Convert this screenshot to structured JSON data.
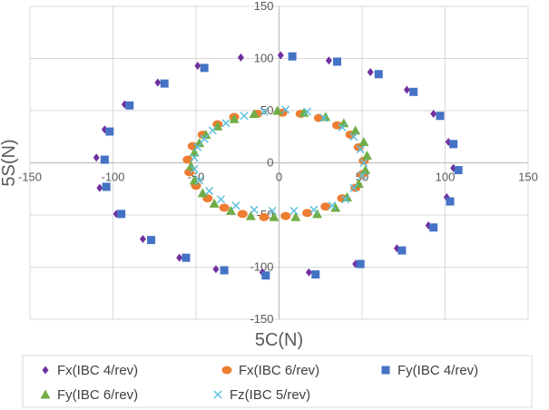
{
  "chart_data": {
    "type": "scatter",
    "xlabel": "5C(N)",
    "ylabel": "5S(N)",
    "xlim": [
      -150,
      150
    ],
    "ylim": [
      -150,
      150
    ],
    "x_ticks": [
      "-150",
      "-100",
      "-50",
      "0",
      "50",
      "100",
      "150"
    ],
    "y_ticks": [
      "150",
      "100",
      "50",
      "0",
      "-50",
      "-100",
      "-150"
    ],
    "grid": true,
    "legend_position": "bottom",
    "series": [
      {
        "name": "Fx(IBC 4/rev)",
        "marker": "diamond",
        "color": "#7030A0",
        "points": [
          [
            1,
            103
          ],
          [
            30,
            98
          ],
          [
            55,
            87
          ],
          [
            77,
            70
          ],
          [
            93,
            47
          ],
          [
            102,
            20
          ],
          [
            105,
            -5
          ],
          [
            101,
            -33
          ],
          [
            90,
            -60
          ],
          [
            71,
            -82
          ],
          [
            46,
            -97
          ],
          [
            18,
            -105
          ],
          [
            -10,
            -105
          ],
          [
            -38,
            -102
          ],
          [
            -60,
            -91
          ],
          [
            -82,
            -73
          ],
          [
            -98,
            -49
          ],
          [
            -108,
            -24
          ],
          [
            -110,
            5
          ],
          [
            -105,
            32
          ],
          [
            -93,
            56
          ],
          [
            -73,
            77
          ],
          [
            -49,
            93
          ],
          [
            -23,
            101
          ]
        ]
      },
      {
        "name": "Fx(IBC 6/rev)",
        "marker": "circle",
        "color": "#ED7D31",
        "points": [
          [
            2,
            48
          ],
          [
            13,
            47
          ],
          [
            24,
            43
          ],
          [
            35,
            36
          ],
          [
            43,
            27
          ],
          [
            48,
            15
          ],
          [
            51,
            2
          ],
          [
            50,
            -11
          ],
          [
            46,
            -24
          ],
          [
            38,
            -34
          ],
          [
            28,
            -42
          ],
          [
            17,
            -48
          ],
          [
            4,
            -51
          ],
          [
            -9,
            -52
          ],
          [
            -22,
            -49
          ],
          [
            -33,
            -43
          ],
          [
            -43,
            -34
          ],
          [
            -50,
            -22
          ],
          [
            -54,
            -9
          ],
          [
            -55,
            3
          ],
          [
            -52,
            16
          ],
          [
            -46,
            27
          ],
          [
            -37,
            37
          ],
          [
            -27,
            44
          ],
          [
            -13,
            47
          ]
        ]
      },
      {
        "name": "Fy(IBC 4/rev)",
        "marker": "square",
        "color": "#4472C4",
        "points": [
          [
            8,
            102
          ],
          [
            35,
            97
          ],
          [
            60,
            85
          ],
          [
            81,
            68
          ],
          [
            97,
            45
          ],
          [
            105,
            18
          ],
          [
            108,
            -7
          ],
          [
            103,
            -37
          ],
          [
            93,
            -62
          ],
          [
            74,
            -84
          ],
          [
            49,
            -97
          ],
          [
            22,
            -107
          ],
          [
            -8,
            -108
          ],
          [
            -33,
            -103
          ],
          [
            -56,
            -91
          ],
          [
            -77,
            -74
          ],
          [
            -95,
            -49
          ],
          [
            -104,
            -23
          ],
          [
            -105,
            3
          ],
          [
            -102,
            30
          ],
          [
            -90,
            55
          ],
          [
            -69,
            76
          ],
          [
            -45,
            91
          ]
        ]
      },
      {
        "name": "Fy(IBC 6/rev)",
        "marker": "triangle",
        "color": "#70AD47",
        "points": [
          [
            -15,
            47
          ],
          [
            -1,
            50
          ],
          [
            15,
            48
          ],
          [
            28,
            44
          ],
          [
            39,
            38
          ],
          [
            46,
            31
          ],
          [
            51,
            20
          ],
          [
            53,
            7
          ],
          [
            52,
            -7
          ],
          [
            48,
            -20
          ],
          [
            41,
            -33
          ],
          [
            34,
            -43
          ],
          [
            23,
            -49
          ],
          [
            10,
            -52
          ],
          [
            -3,
            -52
          ],
          [
            -17,
            -51
          ],
          [
            -29,
            -46
          ],
          [
            -39,
            -39
          ],
          [
            -46,
            -29
          ],
          [
            -51,
            -17
          ],
          [
            -53,
            -3
          ],
          [
            -51,
            10
          ],
          [
            -48,
            19
          ],
          [
            -44,
            27
          ],
          [
            -37,
            35
          ],
          [
            -27,
            42
          ]
        ]
      },
      {
        "name": "Fz(IBC 5/rev)",
        "marker": "x",
        "color": "#5BC0DE",
        "points": [
          [
            -9,
            49
          ],
          [
            4,
            51
          ],
          [
            17,
            49
          ],
          [
            27,
            43
          ],
          [
            38,
            34
          ],
          [
            45,
            25
          ],
          [
            49,
            13
          ],
          [
            51,
            0
          ],
          [
            50,
            -12
          ],
          [
            45,
            -24
          ],
          [
            40,
            -35
          ],
          [
            32,
            -41
          ],
          [
            21,
            -45
          ],
          [
            9,
            -46
          ],
          [
            -4,
            -46
          ],
          [
            -15,
            -45
          ],
          [
            -26,
            -41
          ],
          [
            -35,
            -35
          ],
          [
            -42,
            -27
          ],
          [
            -48,
            -17
          ],
          [
            -51,
            -6
          ],
          [
            -51,
            5
          ],
          [
            -49,
            15
          ],
          [
            -45,
            23
          ],
          [
            -40,
            31
          ],
          [
            -32,
            38
          ],
          [
            -21,
            45
          ]
        ]
      }
    ]
  }
}
